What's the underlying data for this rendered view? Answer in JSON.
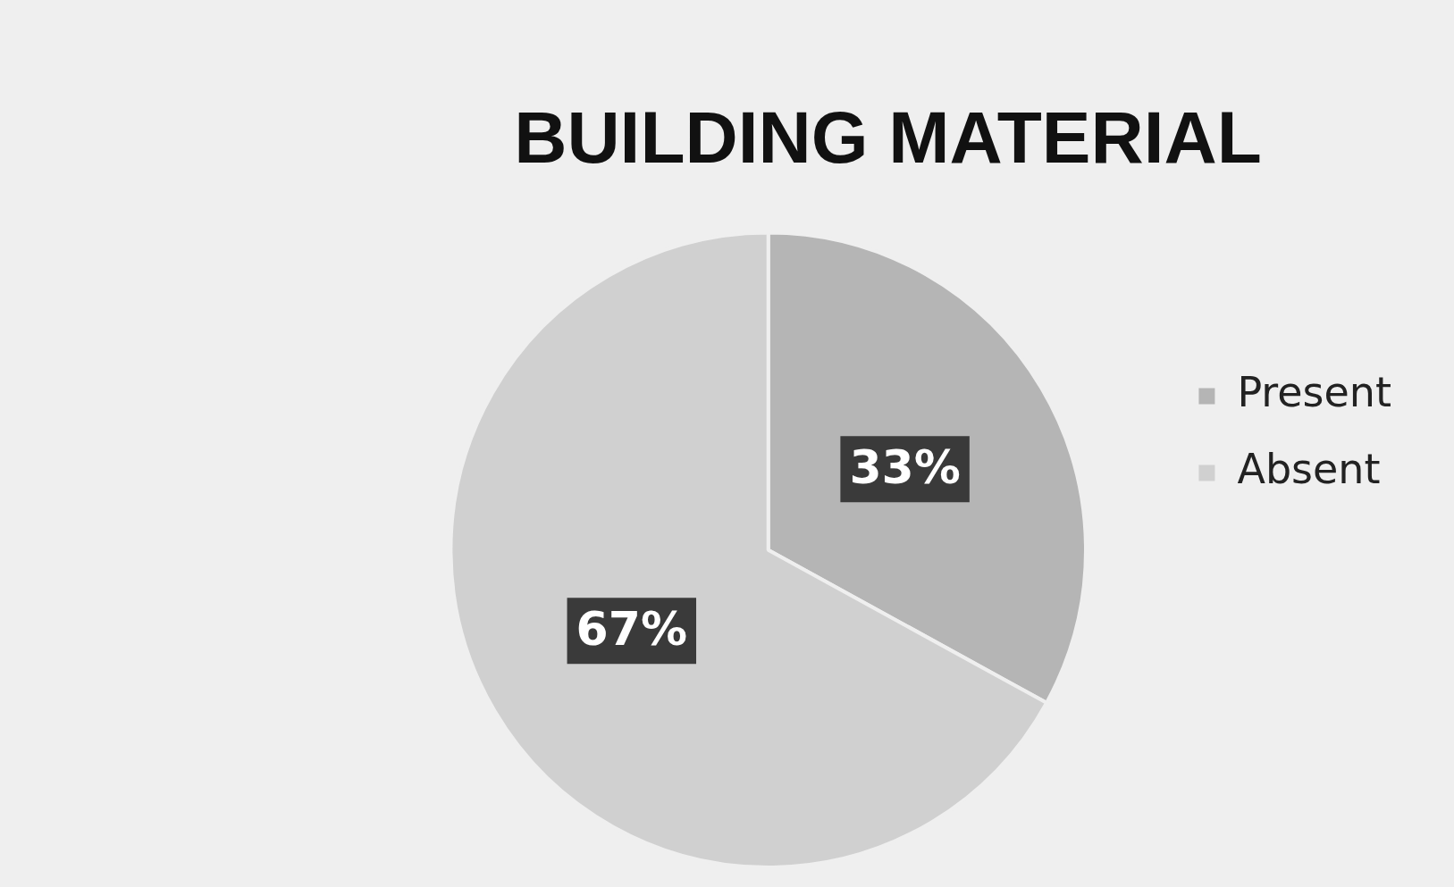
{
  "chart_data": {
    "type": "pie",
    "title": "BUILDING MATERIAL",
    "categories": [
      "Present",
      "Absent"
    ],
    "values": [
      33,
      67
    ],
    "colors": [
      "#b5b5b5",
      "#d0d0d0"
    ],
    "value_labels": [
      "33%",
      "67%"
    ],
    "legend": "right"
  }
}
